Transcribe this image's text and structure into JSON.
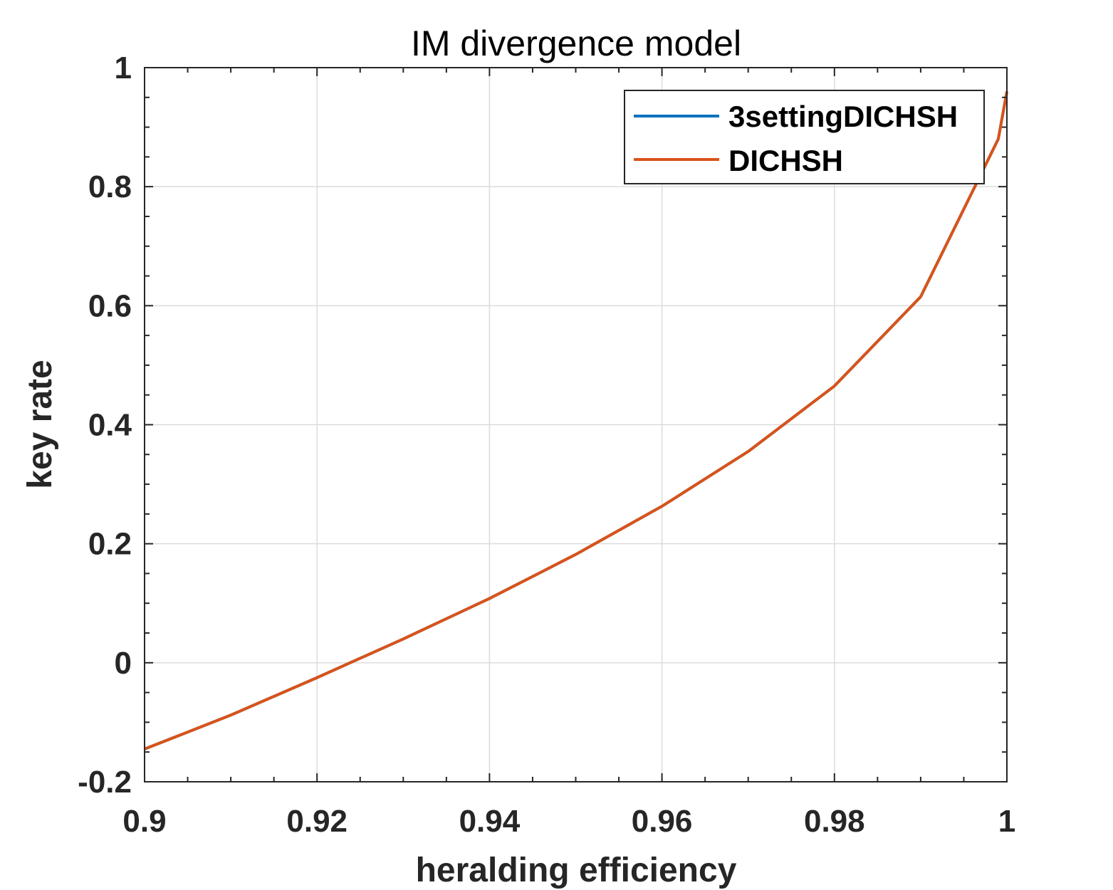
{
  "chart_data": {
    "type": "line",
    "title": "IM divergence model",
    "xlabel": "heralding efficiency",
    "ylabel": "key rate",
    "xlim": [
      0.9,
      1.0
    ],
    "ylim": [
      -0.2,
      1.0
    ],
    "x_ticks": [
      "0.9",
      "0.92",
      "0.94",
      "0.96",
      "0.98",
      "1"
    ],
    "y_ticks": [
      "-0.2",
      "0",
      "0.2",
      "0.4",
      "0.6",
      "0.8",
      "1"
    ],
    "grid": true,
    "legend_position": "top-right",
    "series": [
      {
        "name": "3settingDICHSH",
        "color": "#0072BD",
        "x": [
          0.9,
          0.91,
          0.92,
          0.93,
          0.94,
          0.95,
          0.96,
          0.97,
          0.98,
          0.99,
          0.999,
          1.0
        ],
        "y": [
          -0.145,
          -0.088,
          -0.025,
          0.04,
          0.108,
          0.182,
          0.263,
          0.355,
          0.465,
          0.615,
          0.88,
          0.96
        ]
      },
      {
        "name": "DICHSH",
        "color": "#D95319",
        "x": [
          0.9,
          0.91,
          0.92,
          0.93,
          0.94,
          0.95,
          0.96,
          0.97,
          0.98,
          0.99,
          0.999,
          1.0
        ],
        "y": [
          -0.145,
          -0.088,
          -0.025,
          0.04,
          0.108,
          0.182,
          0.263,
          0.355,
          0.465,
          0.615,
          0.88,
          0.96
        ]
      }
    ]
  }
}
